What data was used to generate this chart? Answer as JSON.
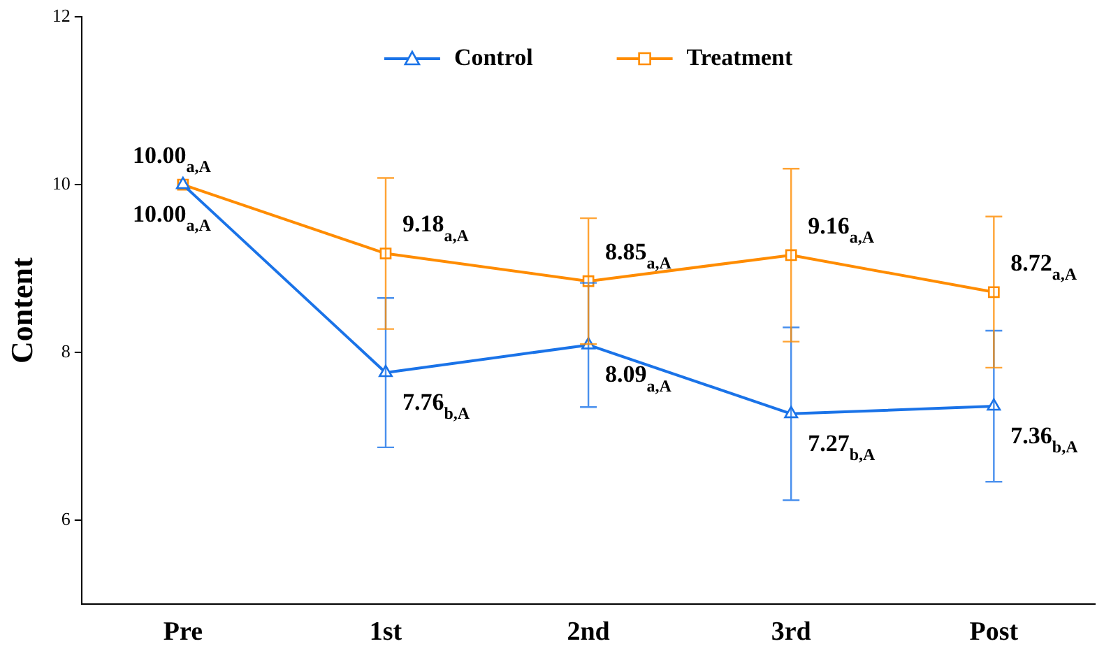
{
  "chart_data": {
    "type": "line",
    "ylabel": "Content",
    "categories": [
      "Pre",
      "1st",
      "2nd",
      "3rd",
      "Post"
    ],
    "series": [
      {
        "name": "Control",
        "color": "#1a73e8",
        "marker": "triangle",
        "values": [
          10,
          7.76,
          8.09,
          7.27,
          7.36
        ],
        "errors": [
          null,
          0.89,
          0.74,
          1.03,
          0.9
        ]
      },
      {
        "name": "Treatment",
        "color": "#ff8c00",
        "marker": "square",
        "values": [
          10,
          9.18,
          8.85,
          9.16,
          8.72
        ],
        "errors": [
          null,
          0.9,
          0.75,
          1.03,
          0.9
        ]
      }
    ],
    "ylim": [
      5,
      12
    ],
    "yticks": [
      6,
      8,
      10,
      12
    ],
    "grid": false,
    "legend": "top",
    "line_style": "solid",
    "annotations": [
      {
        "text": "10.00$_{a,A}$",
        "x": "Pre",
        "y": 10
      },
      {
        "text": "10.00$_{a,A}$",
        "x": "Pre",
        "y": 10
      },
      {
        "text": "9.18$_{a,A}$",
        "x": "1st",
        "y": 9.18
      },
      {
        "text": "7.76$_{b,A}$",
        "x": "1st",
        "y": 7.76
      },
      {
        "text": "8.85$_{a,A}$",
        "x": "2nd",
        "y": 8.85
      },
      {
        "text": "8.09$_{a,A}$",
        "x": "2nd",
        "y": 8.09
      },
      {
        "text": "9.16$_{a,A}$",
        "x": "3rd",
        "y": 9.16
      },
      {
        "text": "7.27$_{b,A}$",
        "x": "3rd",
        "y": 7.27
      },
      {
        "text": "8.72$_{a,A}$",
        "x": "Post",
        "y": 8.72
      },
      {
        "text": "7.36$_{b,A}$",
        "x": "Post",
        "y": 7.36
      }
    ]
  }
}
